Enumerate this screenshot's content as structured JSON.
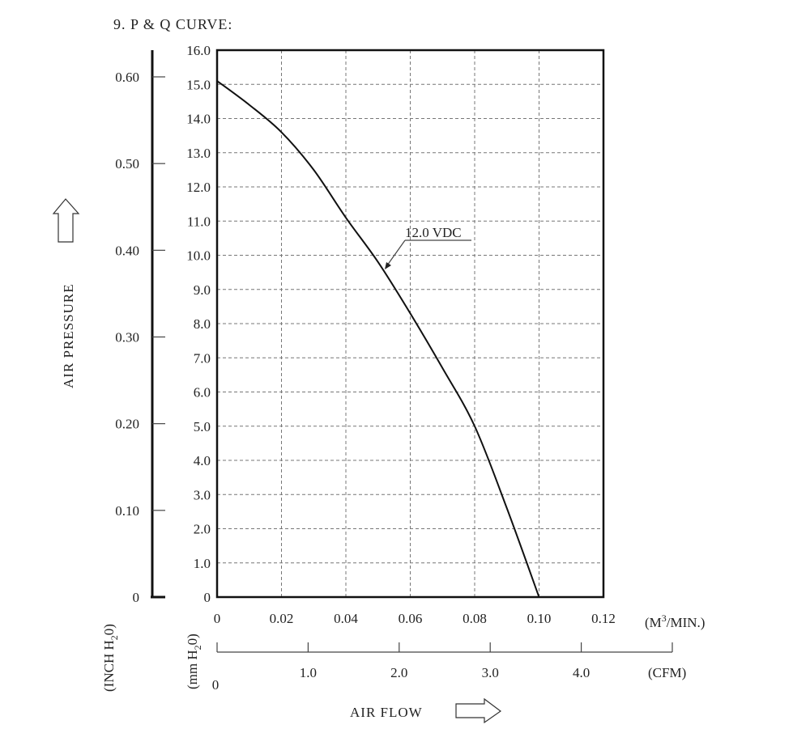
{
  "header": {
    "title": "9. P & Q CURVE:"
  },
  "chart_data": {
    "type": "line",
    "title": "9. P & Q CURVE:",
    "xlabel": "AIR FLOW",
    "ylabel": "AIR PRESSURE",
    "x_unit": "(M",
    "x_unit_sup": "3",
    "x_unit_tail": "/MIN.)",
    "x2_unit": "(CFM)",
    "y_unit_mm_pre": "(mm H",
    "y_unit_mm_sub": "2",
    "y_unit_mm_post": "0)",
    "y_unit_inch_pre": "(INCH H",
    "y_unit_inch_sub": "2",
    "y_unit_inch_post": "0)",
    "xlim": [
      0,
      0.12
    ],
    "ylim": [
      0,
      16
    ],
    "x_ticks": [
      "0",
      "0.02",
      "0.04",
      "0.06",
      "0.08",
      "0.10",
      "0.12"
    ],
    "y_ticks": [
      "0",
      "1.0",
      "2.0",
      "3.0",
      "4.0",
      "5.0",
      "6.0",
      "7.0",
      "8.0",
      "9.0",
      "10.0",
      "11.0",
      "12.0",
      "13.0",
      "14.0",
      "15.0",
      "16.0"
    ],
    "y2_ticks": [
      "0",
      "0.10",
      "0.20",
      "0.30",
      "0.40",
      "0.50",
      "0.60"
    ],
    "x2_ticks": [
      "0",
      "1.0",
      "2.0",
      "3.0",
      "4.0"
    ],
    "grid": true,
    "series": [
      {
        "name": "12.0 VDC",
        "x": [
          0,
          0.01,
          0.02,
          0.03,
          0.04,
          0.05,
          0.06,
          0.07,
          0.08,
          0.09,
          0.1
        ],
        "y": [
          15.1,
          14.4,
          13.6,
          12.5,
          11.1,
          9.8,
          8.3,
          6.7,
          5.0,
          2.6,
          0
        ]
      }
    ]
  }
}
